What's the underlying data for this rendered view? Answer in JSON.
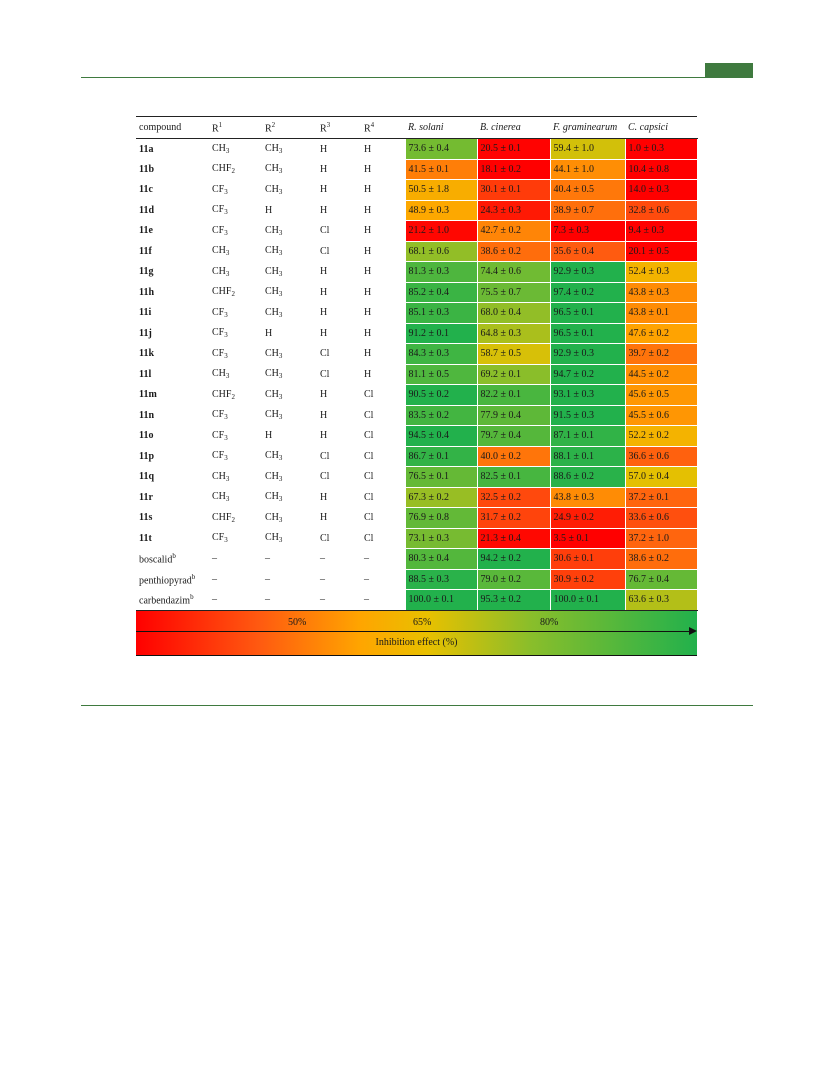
{
  "header": {
    "columns": [
      "compound",
      "R1",
      "R2",
      "R3",
      "R4",
      "R. solani",
      "B. cinerea",
      "F. graminearum",
      "C. capsici"
    ],
    "superscripts": [
      "1",
      "2",
      "3",
      "4"
    ]
  },
  "rows": [
    {
      "compound": "11a",
      "bold": true,
      "r1": "CH",
      "r1sub": "3",
      "r2": "CH",
      "r2sub": "3",
      "r3": "H",
      "r4": "H",
      "values": [
        "73.6 ± 0.4",
        "20.5 ± 0.1",
        "59.4 ± 1.0",
        "1.0 ± 0.3"
      ]
    },
    {
      "compound": "11b",
      "bold": true,
      "r1": "CHF",
      "r1sub": "2",
      "r2": "CH",
      "r2sub": "3",
      "r3": "H",
      "r4": "H",
      "values": [
        "41.5 ± 0.1",
        "18.1 ± 0.2",
        "44.1 ± 1.0",
        "10.4 ± 0.8"
      ]
    },
    {
      "compound": "11c",
      "bold": true,
      "r1": "CF",
      "r1sub": "3",
      "r2": "CH",
      "r2sub": "3",
      "r3": "H",
      "r4": "H",
      "values": [
        "50.5 ± 1.8",
        "30.1 ± 0.1",
        "40.4 ± 0.5",
        "14.0 ± 0.3"
      ]
    },
    {
      "compound": "11d",
      "bold": true,
      "r1": "CF",
      "r1sub": "3",
      "r2": "H",
      "r2sub": "",
      "r3": "H",
      "r4": "H",
      "values": [
        "48.9 ± 0.3",
        "24.3 ± 0.3",
        "38.9 ± 0.7",
        "32.8 ± 0.6"
      ]
    },
    {
      "compound": "11e",
      "bold": true,
      "r1": "CF",
      "r1sub": "3",
      "r2": "CH",
      "r2sub": "3",
      "r3": "Cl",
      "r4": "H",
      "values": [
        "21.2 ± 1.0",
        "42.7 ± 0.2",
        "7.3 ± 0.3",
        "9.4 ± 0.3"
      ]
    },
    {
      "compound": "11f",
      "bold": true,
      "r1": "CH",
      "r1sub": "3",
      "r2": "CH",
      "r2sub": "3",
      "r3": "Cl",
      "r4": "H",
      "values": [
        "68.1 ± 0.6",
        "38.6 ± 0.2",
        "35.6 ± 0.4",
        "20.1 ± 0.5"
      ]
    },
    {
      "compound": "11g",
      "bold": true,
      "r1": "CH",
      "r1sub": "3",
      "r2": "CH",
      "r2sub": "3",
      "r3": "H",
      "r4": "H",
      "values": [
        "81.3 ± 0.3",
        "74.4 ± 0.6",
        "92.9 ± 0.3",
        "52.4 ± 0.3"
      ]
    },
    {
      "compound": "11h",
      "bold": true,
      "r1": "CHF",
      "r1sub": "2",
      "r2": "CH",
      "r2sub": "3",
      "r3": "H",
      "r4": "H",
      "values": [
        "85.2 ± 0.4",
        "75.5 ± 0.7",
        "97.4 ± 0.2",
        "43.8 ± 0.3"
      ]
    },
    {
      "compound": "11i",
      "bold": true,
      "r1": "CF",
      "r1sub": "3",
      "r2": "CH",
      "r2sub": "3",
      "r3": "H",
      "r4": "H",
      "values": [
        "85.1 ± 0.3",
        "68.0 ± 0.4",
        "96.5 ± 0.1",
        "43.8 ± 0.1"
      ]
    },
    {
      "compound": "11j",
      "bold": true,
      "r1": "CF",
      "r1sub": "3",
      "r2": "H",
      "r2sub": "",
      "r3": "H",
      "r4": "H",
      "values": [
        "91.2 ± 0.1",
        "64.8 ± 0.3",
        "96.5 ± 0.1",
        "47.6 ± 0.2"
      ]
    },
    {
      "compound": "11k",
      "bold": true,
      "r1": "CF",
      "r1sub": "3",
      "r2": "CH",
      "r2sub": "3",
      "r3": "Cl",
      "r4": "H",
      "values": [
        "84.3 ± 0.3",
        "58.7 ± 0.5",
        "92.9 ± 0.3",
        "39.7 ± 0.2"
      ]
    },
    {
      "compound": "11l",
      "bold": true,
      "r1": "CH",
      "r1sub": "3",
      "r2": "CH",
      "r2sub": "3",
      "r3": "Cl",
      "r4": "H",
      "values": [
        "81.1 ± 0.5",
        "69.2 ± 0.1",
        "94.7 ± 0.2",
        "44.5 ± 0.2"
      ]
    },
    {
      "compound": "11m",
      "bold": true,
      "r1": "CHF",
      "r1sub": "2",
      "r2": "CH",
      "r2sub": "3",
      "r3": "H",
      "r4": "Cl",
      "values": [
        "90.5 ± 0.2",
        "82.2 ± 0.1",
        "93.1 ± 0.3",
        "45.6 ± 0.5"
      ]
    },
    {
      "compound": "11n",
      "bold": true,
      "r1": "CF",
      "r1sub": "3",
      "r2": "CH",
      "r2sub": "3",
      "r3": "H",
      "r4": "Cl",
      "values": [
        "83.5 ± 0.2",
        "77.9 ± 0.4",
        "91.5 ± 0.3",
        "45.5 ± 0.6"
      ]
    },
    {
      "compound": "11o",
      "bold": true,
      "r1": "CF",
      "r1sub": "3",
      "r2": "H",
      "r2sub": "",
      "r3": "H",
      "r4": "Cl",
      "values": [
        "94.5 ± 0.4",
        "79.7 ± 0.4",
        "87.1 ± 0.1",
        "52.2 ± 0.2"
      ]
    },
    {
      "compound": "11p",
      "bold": true,
      "r1": "CF",
      "r1sub": "3",
      "r2": "CH",
      "r2sub": "3",
      "r3": "Cl",
      "r4": "Cl",
      "values": [
        "86.7 ± 0.1",
        "40.0 ± 0.2",
        "88.1 ± 0.1",
        "36.6 ± 0.6"
      ]
    },
    {
      "compound": "11q",
      "bold": true,
      "r1": "CH",
      "r1sub": "3",
      "r2": "CH",
      "r2sub": "3",
      "r3": "Cl",
      "r4": "Cl",
      "values": [
        "76.5 ± 0.1",
        "82.5 ± 0.1",
        "88.6 ± 0.2",
        "57.0 ± 0.4"
      ]
    },
    {
      "compound": "11r",
      "bold": true,
      "r1": "CH",
      "r1sub": "3",
      "r2": "CH",
      "r2sub": "3",
      "r3": "H",
      "r4": "Cl",
      "values": [
        "67.3 ± 0.2",
        "32.5 ± 0.2",
        "43.8 ± 0.3",
        "37.2 ± 0.1"
      ]
    },
    {
      "compound": "11s",
      "bold": true,
      "r1": "CHF",
      "r1sub": "2",
      "r2": "CH",
      "r2sub": "3",
      "r3": "H",
      "r4": "Cl",
      "values": [
        "76.9 ± 0.8",
        "31.7 ± 0.2",
        "24.9 ± 0.2",
        "33.6 ± 0.6"
      ]
    },
    {
      "compound": "11t",
      "bold": true,
      "r1": "CF",
      "r1sub": "3",
      "r2": "CH",
      "r2sub": "3",
      "r3": "Cl",
      "r4": "Cl",
      "values": [
        "73.1 ± 0.3",
        "21.3 ± 0.4",
        "3.5 ± 0.1",
        "37.2 ± 1.0"
      ]
    },
    {
      "compound": "boscalid",
      "sup": "b",
      "bold": false,
      "r1": "–",
      "r1sub": "",
      "r2": "–",
      "r2sub": "",
      "r3": "–",
      "r4": "–",
      "values": [
        "80.3 ± 0.4",
        "94.2 ± 0.2",
        "30.6 ± 0.1",
        "38.6 ± 0.2"
      ]
    },
    {
      "compound": "penthiopyrad",
      "sup": "b",
      "bold": false,
      "r1": "–",
      "r1sub": "",
      "r2": "–",
      "r2sub": "",
      "r3": "–",
      "r4": "–",
      "values": [
        "88.5 ± 0.3",
        "79.0 ± 0.2",
        "30.9 ± 0.2",
        "76.7 ± 0.4"
      ]
    },
    {
      "compound": "carbendazim",
      "sup": "b",
      "bold": false,
      "r1": "–",
      "r1sub": "",
      "r2": "–",
      "r2sub": "",
      "r3": "–",
      "r4": "–",
      "values": [
        "100.0 ± 0.1",
        "95.3 ± 0.2",
        "100.0 ± 0.1",
        "63.6 ± 0.3"
      ]
    }
  ],
  "legend": {
    "ticks": [
      "50%",
      "65%",
      "80%"
    ],
    "label": "Inhibition effect (%)"
  },
  "colors": {
    "accent_rule": "#3f7a3f",
    "scale_low": "#ff0000",
    "scale_mid": "#ffa500",
    "scale_high": "#22b14c"
  }
}
